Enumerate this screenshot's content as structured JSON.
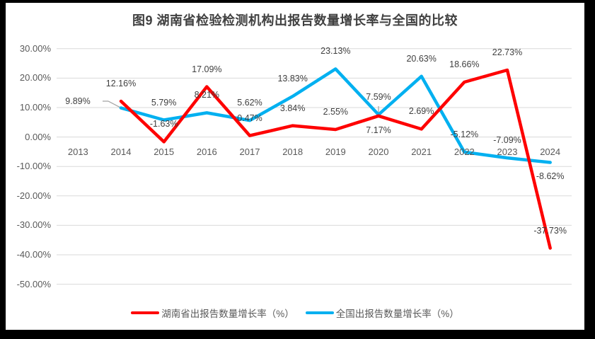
{
  "title": "图9 湖南省检验检测机构出报告数量增长率与全国的比较",
  "chart_data": {
    "type": "line",
    "categories": [
      "2013",
      "2014",
      "2015",
      "2016",
      "2017",
      "2018",
      "2019",
      "2020",
      "2021",
      "2022",
      "2023",
      "2024"
    ],
    "series": [
      {
        "name": "湖南省出报告数量增长率（%）",
        "color": "#fe0000",
        "values": [
          null,
          12.16,
          -1.63,
          17.09,
          0.47,
          3.84,
          2.55,
          7.17,
          2.69,
          18.66,
          22.73,
          -37.73
        ],
        "labels": [
          null,
          "12.16%",
          "-1.63%",
          "17.09%",
          "0.47%",
          "3.84%",
          "2.55%",
          "7.17%",
          "2.69%",
          "18.66%",
          "22.73%",
          "-37.73%"
        ],
        "label_pos": [
          null,
          "above",
          "above",
          "above",
          "above",
          "above",
          "above",
          "below",
          "above",
          "above",
          "above",
          "above"
        ]
      },
      {
        "name": "全国出报告数量增长率（%）",
        "color": "#00b0f0",
        "values": [
          null,
          9.89,
          5.79,
          8.21,
          5.62,
          13.83,
          23.13,
          7.59,
          20.63,
          -5.12,
          -7.09,
          -8.62
        ],
        "labels": [
          null,
          "9.89%",
          "5.79%",
          "8.21%",
          "5.62%",
          "13.83%",
          "23.13%",
          "7.59%",
          "20.63%",
          "-5.12%",
          "-7.09%",
          "-8.62%"
        ],
        "label_pos": [
          null,
          "left-leader",
          "above",
          "above",
          "above",
          "above",
          "above",
          "above-leader",
          "above",
          "above",
          "above",
          "below"
        ]
      }
    ],
    "ylim": [
      -50,
      30
    ],
    "ytick_step": 10,
    "ytick_labels": [
      "30.00%",
      "20.00%",
      "10.00%",
      "0.00%",
      "-10.00%",
      "-20.00%",
      "-30.00%",
      "-40.00%",
      "-50.00%"
    ],
    "grid": true,
    "legend_position": "bottom"
  },
  "colors": {
    "frame_background": "#000000",
    "plot_background": "#ffffff",
    "gridline": "#d9d9d9",
    "axis_label": "#595959",
    "data_label": "#3f3f3f",
    "title": "#404040",
    "leader_line": "#a6a6a6"
  }
}
